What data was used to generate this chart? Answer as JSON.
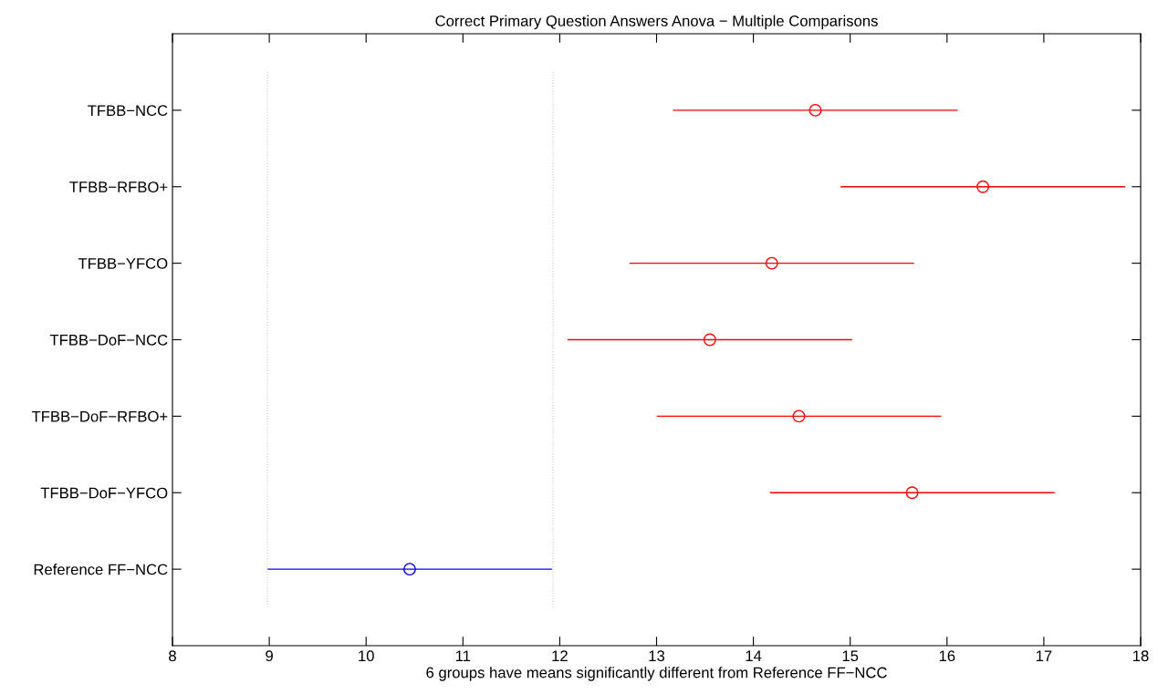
{
  "chart_data": {
    "type": "scatter",
    "orientation": "horizontal",
    "title": "Correct Primary Question Answers Anova − Multiple Comparisons",
    "xlabel": "6 groups have means significantly different from Reference FF−NCC",
    "categories": [
      "TFBB−NCC",
      "TFBB−RFBO+",
      "TFBB−YFCO",
      "TFBB−DoF−NCC",
      "TFBB−DoF−RFBO+",
      "TFBB−DoF−YFCO",
      "Reference FF−NCC"
    ],
    "series": [
      {
        "color": "#ff0000",
        "values": [
          14.64,
          16.37,
          14.19,
          13.55,
          14.47,
          15.64,
          null
        ],
        "errors": [
          1.47,
          1.47,
          1.47,
          1.47,
          1.47,
          1.47,
          null
        ]
      },
      {
        "color": "#0000ff",
        "values": [
          null,
          null,
          null,
          null,
          null,
          null,
          10.45
        ],
        "errors": [
          null,
          null,
          null,
          null,
          null,
          null,
          1.47
        ]
      }
    ],
    "xlim": [
      8,
      18
    ],
    "xticks": [
      8,
      9,
      10,
      11,
      12,
      13,
      14,
      15,
      16,
      17,
      18
    ],
    "ref_lines": [
      {
        "axis": "x",
        "value": 8.98,
        "color": "#c8c8c8",
        "line_style": "dotted"
      },
      {
        "axis": "x",
        "value": 11.93,
        "color": "#c8c8c8",
        "line_style": "dotted"
      }
    ],
    "marker": "circle",
    "grid": false,
    "legend": false
  }
}
